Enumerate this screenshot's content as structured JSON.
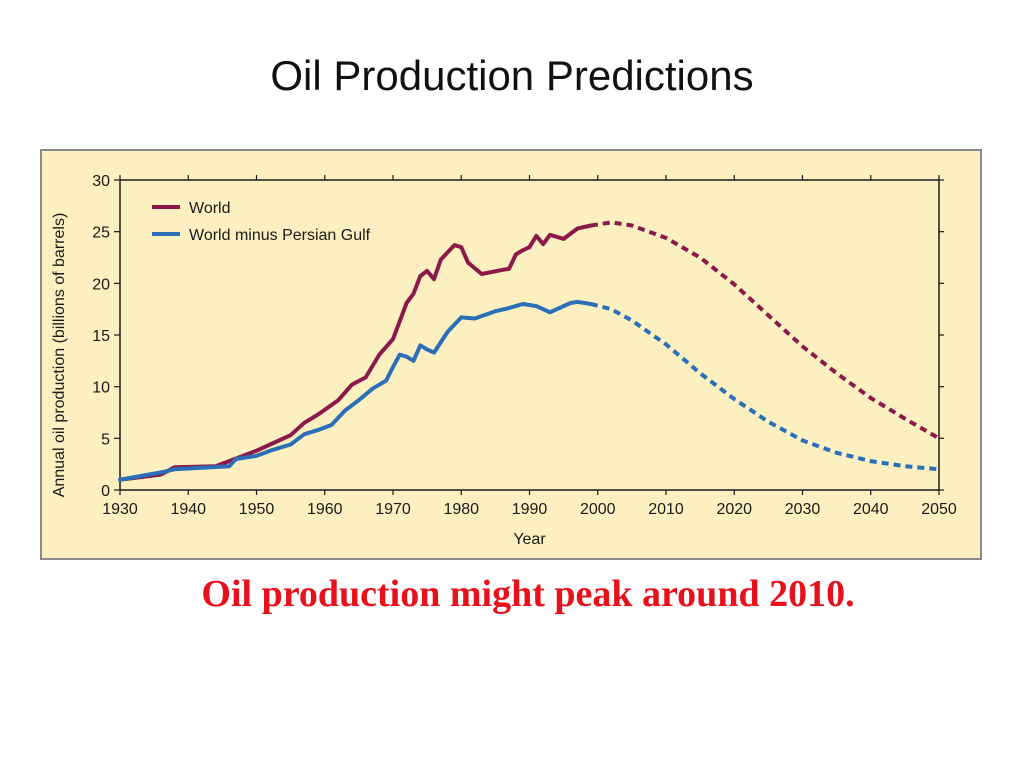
{
  "slide": {
    "title": "Oil Production Predictions",
    "caption": "Oil production might peak around 2010.",
    "caption_color": "#e8101a"
  },
  "chart_data": {
    "type": "line",
    "title": "",
    "xlabel": "Year",
    "ylabel": "Annual oil production (billions of barrels)",
    "xlim": [
      1930,
      2050
    ],
    "ylim": [
      0,
      30
    ],
    "xticks": [
      1930,
      1940,
      1950,
      1960,
      1970,
      1980,
      1990,
      2000,
      2010,
      2020,
      2030,
      2040,
      2050
    ],
    "yticks": [
      0,
      5,
      10,
      15,
      20,
      25,
      30
    ],
    "grid": false,
    "legend_position": "top-left",
    "background": "#fcefc0",
    "series": [
      {
        "name": "World",
        "color": "#8b1a4a",
        "values_actual": [
          [
            1930,
            1.0
          ],
          [
            1936,
            1.5
          ],
          [
            1938,
            2.2
          ],
          [
            1944,
            2.3
          ],
          [
            1946,
            2.8
          ],
          [
            1950,
            3.8
          ],
          [
            1952,
            4.4
          ],
          [
            1955,
            5.3
          ],
          [
            1957,
            6.5
          ],
          [
            1959,
            7.3
          ],
          [
            1962,
            8.7
          ],
          [
            1964,
            10.2
          ],
          [
            1966,
            10.9
          ],
          [
            1968,
            13.1
          ],
          [
            1970,
            14.6
          ],
          [
            1972,
            18.1
          ],
          [
            1973,
            19.0
          ],
          [
            1974,
            20.7
          ],
          [
            1975,
            21.2
          ],
          [
            1976,
            20.4
          ],
          [
            1977,
            22.3
          ],
          [
            1979,
            23.7
          ],
          [
            1980,
            23.5
          ],
          [
            1981,
            22.0
          ],
          [
            1983,
            20.9
          ],
          [
            1986,
            21.3
          ],
          [
            1987,
            21.4
          ],
          [
            1988,
            22.8
          ],
          [
            1989,
            23.2
          ],
          [
            1990,
            23.5
          ],
          [
            1991,
            24.6
          ],
          [
            1992,
            23.8
          ],
          [
            1993,
            24.7
          ],
          [
            1995,
            24.3
          ],
          [
            1997,
            25.3
          ],
          [
            1999,
            25.6
          ]
        ],
        "values_projected": [
          [
            1999,
            25.6
          ],
          [
            2002,
            25.9
          ],
          [
            2005,
            25.6
          ],
          [
            2010,
            24.4
          ],
          [
            2015,
            22.5
          ],
          [
            2020,
            19.9
          ],
          [
            2025,
            16.9
          ],
          [
            2030,
            13.9
          ],
          [
            2035,
            11.3
          ],
          [
            2040,
            8.9
          ],
          [
            2045,
            6.9
          ],
          [
            2050,
            5.0
          ]
        ]
      },
      {
        "name": "World minus Persian Gulf",
        "color": "#2a6fb8",
        "values_actual": [
          [
            1930,
            1.0
          ],
          [
            1936,
            1.7
          ],
          [
            1938,
            2.0
          ],
          [
            1946,
            2.3
          ],
          [
            1947,
            3.0
          ],
          [
            1950,
            3.3
          ],
          [
            1952,
            3.8
          ],
          [
            1955,
            4.4
          ],
          [
            1957,
            5.4
          ],
          [
            1959,
            5.8
          ],
          [
            1961,
            6.3
          ],
          [
            1963,
            7.7
          ],
          [
            1965,
            8.7
          ],
          [
            1967,
            9.8
          ],
          [
            1969,
            10.6
          ],
          [
            1970,
            11.9
          ],
          [
            1971,
            13.1
          ],
          [
            1972,
            12.9
          ],
          [
            1973,
            12.5
          ],
          [
            1974,
            14.0
          ],
          [
            1975,
            13.6
          ],
          [
            1976,
            13.3
          ],
          [
            1978,
            15.3
          ],
          [
            1980,
            16.7
          ],
          [
            1982,
            16.6
          ],
          [
            1985,
            17.3
          ],
          [
            1987,
            17.6
          ],
          [
            1989,
            18.0
          ],
          [
            1991,
            17.8
          ],
          [
            1993,
            17.2
          ],
          [
            1994,
            17.5
          ],
          [
            1996,
            18.1
          ],
          [
            1997,
            18.2
          ],
          [
            1999,
            18.0
          ]
        ],
        "values_projected": [
          [
            1999,
            18.0
          ],
          [
            2002,
            17.5
          ],
          [
            2005,
            16.4
          ],
          [
            2010,
            14.1
          ],
          [
            2015,
            11.3
          ],
          [
            2020,
            8.8
          ],
          [
            2025,
            6.6
          ],
          [
            2030,
            4.8
          ],
          [
            2035,
            3.6
          ],
          [
            2040,
            2.8
          ],
          [
            2045,
            2.3
          ],
          [
            2050,
            2.0
          ]
        ]
      }
    ]
  }
}
